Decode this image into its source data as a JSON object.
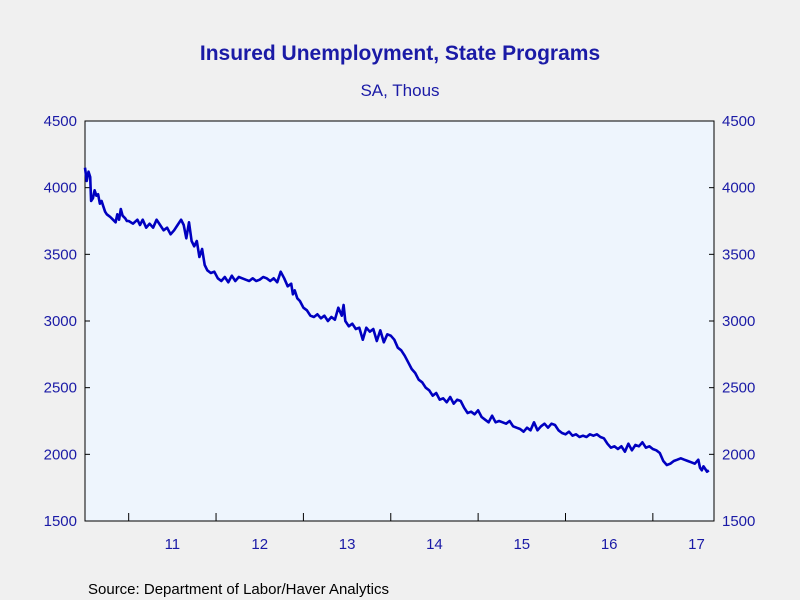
{
  "title": "Insured Unemployment, State Programs",
  "subtitle": "SA, Thous",
  "source": "Source:  Department of Labor/Haver Analytics",
  "colors": {
    "background": "#f0f0f0",
    "plot_background": "#eef5fd",
    "text": "#1a1aa6",
    "line": "#0000c0",
    "axis": "#000000"
  },
  "chart_data": {
    "type": "line",
    "title": "Insured Unemployment, State Programs",
    "subtitle": "SA, Thous",
    "xlabel": "",
    "ylabel": "",
    "ylim": [
      1500,
      4500
    ],
    "xlim": [
      2010.5,
      2017.7
    ],
    "y_ticks": [
      1500,
      2000,
      2500,
      3000,
      3500,
      4000,
      4500
    ],
    "y_tick_labels": [
      "1500",
      "2000",
      "2500",
      "3000",
      "3500",
      "4000",
      "4500"
    ],
    "y_axis_sides": "left and right",
    "x_tick_boundaries": [
      2011,
      2012,
      2013,
      2014,
      2015,
      2016,
      2017
    ],
    "x_year_labels": [
      {
        "label": "11",
        "center": 2011.5
      },
      {
        "label": "12",
        "center": 2012.5
      },
      {
        "label": "13",
        "center": 2013.5
      },
      {
        "label": "14",
        "center": 2014.5
      },
      {
        "label": "15",
        "center": 2015.5
      },
      {
        "label": "16",
        "center": 2016.5
      },
      {
        "label": "17",
        "center": 2017.5
      }
    ],
    "grid": false,
    "legend": "none",
    "series": [
      {
        "color": "#0000c0",
        "points": [
          [
            2010.5,
            4150
          ],
          [
            2010.52,
            4050
          ],
          [
            2010.54,
            4120
          ],
          [
            2010.56,
            4080
          ],
          [
            2010.57,
            3900
          ],
          [
            2010.59,
            3920
          ],
          [
            2010.61,
            3980
          ],
          [
            2010.63,
            3940
          ],
          [
            2010.65,
            3950
          ],
          [
            2010.67,
            3880
          ],
          [
            2010.69,
            3900
          ],
          [
            2010.71,
            3860
          ],
          [
            2010.73,
            3820
          ],
          [
            2010.75,
            3800
          ],
          [
            2010.77,
            3790
          ],
          [
            2010.79,
            3780
          ],
          [
            2010.82,
            3760
          ],
          [
            2010.85,
            3740
          ],
          [
            2010.87,
            3800
          ],
          [
            2010.89,
            3760
          ],
          [
            2010.91,
            3840
          ],
          [
            2010.93,
            3790
          ],
          [
            2010.96,
            3770
          ],
          [
            2010.98,
            3750
          ],
          [
            2011.0,
            3750
          ],
          [
            2011.05,
            3730
          ],
          [
            2011.1,
            3760
          ],
          [
            2011.13,
            3720
          ],
          [
            2011.16,
            3760
          ],
          [
            2011.2,
            3700
          ],
          [
            2011.24,
            3730
          ],
          [
            2011.28,
            3700
          ],
          [
            2011.32,
            3760
          ],
          [
            2011.36,
            3720
          ],
          [
            2011.4,
            3680
          ],
          [
            2011.44,
            3700
          ],
          [
            2011.48,
            3650
          ],
          [
            2011.52,
            3680
          ],
          [
            2011.56,
            3720
          ],
          [
            2011.6,
            3760
          ],
          [
            2011.63,
            3720
          ],
          [
            2011.66,
            3620
          ],
          [
            2011.69,
            3740
          ],
          [
            2011.72,
            3600
          ],
          [
            2011.75,
            3560
          ],
          [
            2011.78,
            3600
          ],
          [
            2011.81,
            3480
          ],
          [
            2011.84,
            3540
          ],
          [
            2011.87,
            3420
          ],
          [
            2011.9,
            3380
          ],
          [
            2011.94,
            3360
          ],
          [
            2011.98,
            3370
          ],
          [
            2012.02,
            3320
          ],
          [
            2012.06,
            3300
          ],
          [
            2012.1,
            3330
          ],
          [
            2012.14,
            3290
          ],
          [
            2012.18,
            3340
          ],
          [
            2012.22,
            3300
          ],
          [
            2012.26,
            3330
          ],
          [
            2012.3,
            3320
          ],
          [
            2012.34,
            3310
          ],
          [
            2012.38,
            3300
          ],
          [
            2012.42,
            3320
          ],
          [
            2012.46,
            3300
          ],
          [
            2012.5,
            3310
          ],
          [
            2012.54,
            3330
          ],
          [
            2012.58,
            3320
          ],
          [
            2012.62,
            3300
          ],
          [
            2012.66,
            3320
          ],
          [
            2012.7,
            3290
          ],
          [
            2012.74,
            3370
          ],
          [
            2012.78,
            3320
          ],
          [
            2012.82,
            3260
          ],
          [
            2012.86,
            3280
          ],
          [
            2012.88,
            3200
          ],
          [
            2012.9,
            3230
          ],
          [
            2012.93,
            3170
          ],
          [
            2012.96,
            3150
          ],
          [
            2013.0,
            3100
          ],
          [
            2013.04,
            3080
          ],
          [
            2013.08,
            3040
          ],
          [
            2013.12,
            3030
          ],
          [
            2013.16,
            3050
          ],
          [
            2013.2,
            3020
          ],
          [
            2013.24,
            3040
          ],
          [
            2013.28,
            3000
          ],
          [
            2013.32,
            3030
          ],
          [
            2013.36,
            3010
          ],
          [
            2013.4,
            3100
          ],
          [
            2013.44,
            3040
          ],
          [
            2013.46,
            3120
          ],
          [
            2013.48,
            3000
          ],
          [
            2013.52,
            2960
          ],
          [
            2013.56,
            2980
          ],
          [
            2013.6,
            2940
          ],
          [
            2013.64,
            2950
          ],
          [
            2013.68,
            2860
          ],
          [
            2013.72,
            2950
          ],
          [
            2013.76,
            2920
          ],
          [
            2013.8,
            2940
          ],
          [
            2013.84,
            2850
          ],
          [
            2013.88,
            2930
          ],
          [
            2013.92,
            2840
          ],
          [
            2013.96,
            2900
          ],
          [
            2014.0,
            2890
          ],
          [
            2014.04,
            2860
          ],
          [
            2014.08,
            2800
          ],
          [
            2014.12,
            2780
          ],
          [
            2014.16,
            2740
          ],
          [
            2014.2,
            2690
          ],
          [
            2014.24,
            2640
          ],
          [
            2014.28,
            2610
          ],
          [
            2014.32,
            2560
          ],
          [
            2014.36,
            2540
          ],
          [
            2014.4,
            2500
          ],
          [
            2014.44,
            2480
          ],
          [
            2014.48,
            2440
          ],
          [
            2014.52,
            2460
          ],
          [
            2014.56,
            2410
          ],
          [
            2014.6,
            2420
          ],
          [
            2014.64,
            2390
          ],
          [
            2014.68,
            2430
          ],
          [
            2014.72,
            2380
          ],
          [
            2014.76,
            2410
          ],
          [
            2014.8,
            2400
          ],
          [
            2014.84,
            2350
          ],
          [
            2014.88,
            2310
          ],
          [
            2014.92,
            2320
          ],
          [
            2014.96,
            2300
          ],
          [
            2015.0,
            2330
          ],
          [
            2015.04,
            2280
          ],
          [
            2015.08,
            2260
          ],
          [
            2015.12,
            2240
          ],
          [
            2015.16,
            2290
          ],
          [
            2015.2,
            2240
          ],
          [
            2015.24,
            2250
          ],
          [
            2015.28,
            2240
          ],
          [
            2015.32,
            2230
          ],
          [
            2015.36,
            2250
          ],
          [
            2015.4,
            2210
          ],
          [
            2015.44,
            2200
          ],
          [
            2015.48,
            2190
          ],
          [
            2015.52,
            2170
          ],
          [
            2015.56,
            2200
          ],
          [
            2015.6,
            2180
          ],
          [
            2015.64,
            2240
          ],
          [
            2015.68,
            2180
          ],
          [
            2015.72,
            2210
          ],
          [
            2015.76,
            2230
          ],
          [
            2015.8,
            2200
          ],
          [
            2015.84,
            2230
          ],
          [
            2015.88,
            2220
          ],
          [
            2015.92,
            2180
          ],
          [
            2015.96,
            2160
          ],
          [
            2016.0,
            2150
          ],
          [
            2016.04,
            2170
          ],
          [
            2016.08,
            2140
          ],
          [
            2016.12,
            2150
          ],
          [
            2016.16,
            2130
          ],
          [
            2016.2,
            2140
          ],
          [
            2016.24,
            2130
          ],
          [
            2016.28,
            2150
          ],
          [
            2016.32,
            2140
          ],
          [
            2016.36,
            2150
          ],
          [
            2016.4,
            2130
          ],
          [
            2016.44,
            2120
          ],
          [
            2016.48,
            2080
          ],
          [
            2016.52,
            2050
          ],
          [
            2016.56,
            2060
          ],
          [
            2016.6,
            2040
          ],
          [
            2016.64,
            2060
          ],
          [
            2016.68,
            2020
          ],
          [
            2016.72,
            2080
          ],
          [
            2016.76,
            2030
          ],
          [
            2016.8,
            2070
          ],
          [
            2016.84,
            2060
          ],
          [
            2016.88,
            2090
          ],
          [
            2016.92,
            2050
          ],
          [
            2016.96,
            2060
          ],
          [
            2017.0,
            2040
          ],
          [
            2017.04,
            2030
          ],
          [
            2017.08,
            2010
          ],
          [
            2017.12,
            1950
          ],
          [
            2017.16,
            1920
          ],
          [
            2017.2,
            1930
          ],
          [
            2017.24,
            1950
          ],
          [
            2017.28,
            1960
          ],
          [
            2017.32,
            1970
          ],
          [
            2017.36,
            1960
          ],
          [
            2017.4,
            1950
          ],
          [
            2017.44,
            1940
          ],
          [
            2017.48,
            1930
          ],
          [
            2017.52,
            1960
          ],
          [
            2017.54,
            1900
          ],
          [
            2017.56,
            1880
          ],
          [
            2017.58,
            1910
          ],
          [
            2017.6,
            1890
          ],
          [
            2017.62,
            1870
          ],
          [
            2017.64,
            1880
          ]
        ]
      }
    ]
  }
}
